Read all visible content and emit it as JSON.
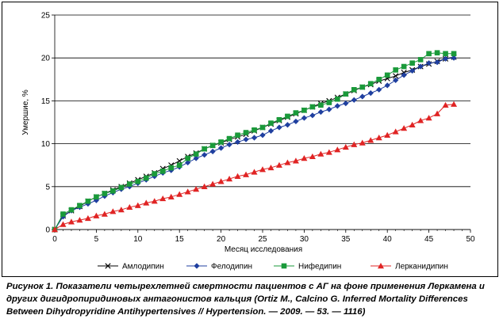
{
  "chart_data": {
    "type": "line",
    "title": "",
    "xlabel": "Месяц исследования",
    "ylabel": "Умершие, %",
    "xlim": [
      0,
      50
    ],
    "ylim": [
      0,
      25
    ],
    "x_ticks": [
      "0",
      "5",
      "10",
      "15",
      "20",
      "25",
      "30",
      "35",
      "40",
      "45",
      "50"
    ],
    "y_ticks": [
      "0",
      "5",
      "10",
      "15",
      "20",
      "25"
    ],
    "grid": "horizontal",
    "legend_position": "bottom",
    "series": [
      {
        "name": "Амлодипин",
        "color": "#000000",
        "marker": "x",
        "x": [
          0,
          1,
          2,
          3,
          4,
          5,
          6,
          7,
          8,
          9,
          10,
          11,
          12,
          13,
          14,
          15,
          16,
          17,
          18,
          19,
          20,
          21,
          22,
          23,
          24,
          25,
          26,
          27,
          28,
          29,
          30,
          31,
          32,
          33,
          34,
          35,
          36,
          37,
          38,
          39,
          40,
          41,
          42,
          43,
          44,
          45,
          46,
          47,
          48
        ],
        "y": [
          0,
          1.6,
          2.2,
          2.7,
          3.3,
          3.8,
          4.2,
          4.6,
          5.0,
          5.4,
          5.8,
          6.2,
          6.6,
          7.1,
          7.5,
          8.0,
          8.5,
          8.9,
          9.4,
          9.8,
          10.1,
          10.5,
          10.8,
          11.1,
          11.5,
          11.9,
          12.3,
          12.7,
          13.1,
          13.5,
          13.9,
          14.3,
          14.7,
          15.0,
          15.4,
          15.8,
          16.2,
          16.6,
          16.9,
          17.3,
          17.6,
          17.9,
          18.3,
          18.6,
          19.0,
          19.3,
          19.6,
          19.9,
          20.1
        ]
      },
      {
        "name": "Фелодипин",
        "color": "#1f3f9f",
        "marker": "diamond",
        "x": [
          0,
          1,
          2,
          3,
          4,
          5,
          6,
          7,
          8,
          9,
          10,
          11,
          12,
          13,
          14,
          15,
          16,
          17,
          18,
          19,
          20,
          21,
          22,
          23,
          24,
          25,
          26,
          27,
          28,
          29,
          30,
          31,
          32,
          33,
          34,
          35,
          36,
          37,
          38,
          39,
          40,
          41,
          42,
          43,
          44,
          45,
          46,
          47,
          48
        ],
        "y": [
          0,
          1.5,
          2.2,
          2.6,
          3.0,
          3.4,
          3.9,
          4.3,
          4.7,
          5.0,
          5.4,
          5.8,
          6.2,
          6.6,
          6.9,
          7.3,
          7.8,
          8.3,
          8.7,
          9.1,
          9.5,
          9.9,
          10.2,
          10.5,
          10.7,
          11.0,
          11.5,
          11.9,
          12.2,
          12.6,
          13.0,
          13.3,
          13.7,
          14.0,
          14.4,
          14.7,
          15.1,
          15.5,
          15.9,
          16.3,
          16.8,
          17.4,
          18.0,
          18.5,
          19.0,
          19.4,
          19.5,
          19.9,
          20.0
        ]
      },
      {
        "name": "Нифедипин",
        "color": "#1a9a3a",
        "marker": "square",
        "x": [
          0,
          1,
          2,
          3,
          4,
          5,
          6,
          7,
          8,
          9,
          10,
          11,
          12,
          13,
          14,
          15,
          16,
          17,
          18,
          19,
          20,
          21,
          22,
          23,
          24,
          25,
          26,
          27,
          28,
          29,
          30,
          31,
          32,
          33,
          34,
          35,
          36,
          37,
          38,
          39,
          40,
          41,
          42,
          43,
          44,
          45,
          46,
          47,
          48
        ],
        "y": [
          0,
          1.8,
          2.3,
          2.8,
          3.3,
          3.8,
          4.2,
          4.5,
          4.9,
          5.3,
          5.6,
          6.0,
          6.5,
          6.8,
          7.2,
          7.5,
          8.3,
          8.8,
          9.4,
          9.8,
          10.2,
          10.6,
          11.0,
          11.3,
          11.6,
          11.9,
          12.4,
          12.8,
          13.2,
          13.6,
          13.9,
          14.3,
          14.5,
          14.8,
          15.2,
          15.8,
          16.3,
          16.6,
          17.0,
          17.5,
          18.0,
          18.6,
          19.0,
          19.4,
          19.8,
          20.5,
          20.6,
          20.5,
          20.5
        ]
      },
      {
        "name": "Лерканидипин",
        "color": "#e02424",
        "marker": "triangle",
        "x": [
          0,
          1,
          2,
          3,
          4,
          5,
          6,
          7,
          8,
          9,
          10,
          11,
          12,
          13,
          14,
          15,
          16,
          17,
          18,
          19,
          20,
          21,
          22,
          23,
          24,
          25,
          26,
          27,
          28,
          29,
          30,
          31,
          32,
          33,
          34,
          35,
          36,
          37,
          38,
          39,
          40,
          41,
          42,
          43,
          44,
          45,
          46,
          47,
          48
        ],
        "y": [
          0,
          0.6,
          0.9,
          1.1,
          1.3,
          1.6,
          1.8,
          2.1,
          2.3,
          2.6,
          2.8,
          3.1,
          3.3,
          3.6,
          3.8,
          4.1,
          4.4,
          4.7,
          5.0,
          5.3,
          5.6,
          5.9,
          6.2,
          6.4,
          6.7,
          7.0,
          7.2,
          7.5,
          7.8,
          8.0,
          8.3,
          8.5,
          8.8,
          9.0,
          9.3,
          9.6,
          9.9,
          10.1,
          10.4,
          10.7,
          11.0,
          11.4,
          11.8,
          12.2,
          12.7,
          13.0,
          13.5,
          14.5,
          14.6
        ]
      }
    ]
  },
  "caption": {
    "text": "Рисунок 1. Показатели четырехлетней смертности пациентов с АГ на фоне применения Леркамена и других дигидропиридиновых антагонистов кальция (Ortiz M., Calcino G. Inferred Mortality Differences Between Dihydropyridine Antihypertensives // Hypertension. — 2009. — 53. — 1116)"
  }
}
